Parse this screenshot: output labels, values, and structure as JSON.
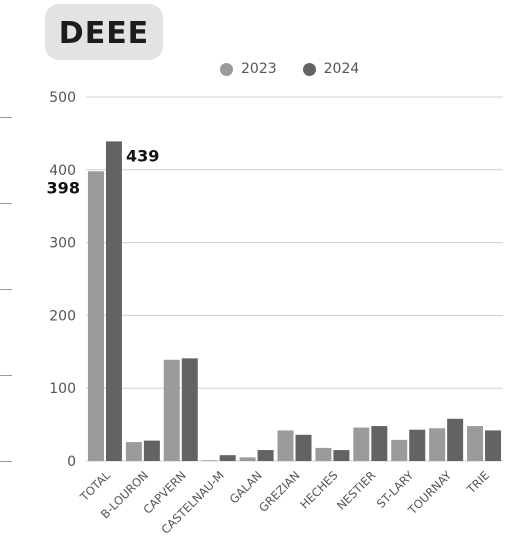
{
  "header": {
    "title": "DEEE"
  },
  "colors": {
    "series_2023": "#9b9b9b",
    "series_2024": "#636363",
    "grid": "#d0d0d0",
    "axis_text": "#555555"
  },
  "chart_data": {
    "type": "bar",
    "title": "DEEE",
    "categories": [
      "TOTAL",
      "B-LOURON",
      "CAPVERN",
      "CASTELNAU-M",
      "GALAN",
      "GREZIAN",
      "HECHES",
      "NESTIER",
      "ST-LARY",
      "TOURNAY",
      "TRIE"
    ],
    "series": [
      {
        "name": "2023",
        "values": [
          398,
          26,
          139,
          1,
          5,
          42,
          18,
          46,
          29,
          45,
          48
        ]
      },
      {
        "name": "2024",
        "values": [
          439,
          28,
          141,
          8,
          15,
          36,
          15,
          48,
          43,
          58,
          42
        ]
      }
    ],
    "ylim": [
      0,
      500
    ],
    "yticks": [
      0,
      100,
      200,
      300,
      400,
      500
    ],
    "data_labels": [
      {
        "series": 0,
        "category": 0,
        "text": "398"
      },
      {
        "series": 1,
        "category": 0,
        "text": "439"
      }
    ],
    "legend": "top",
    "grid": true,
    "xlabel": "",
    "ylabel": ""
  }
}
